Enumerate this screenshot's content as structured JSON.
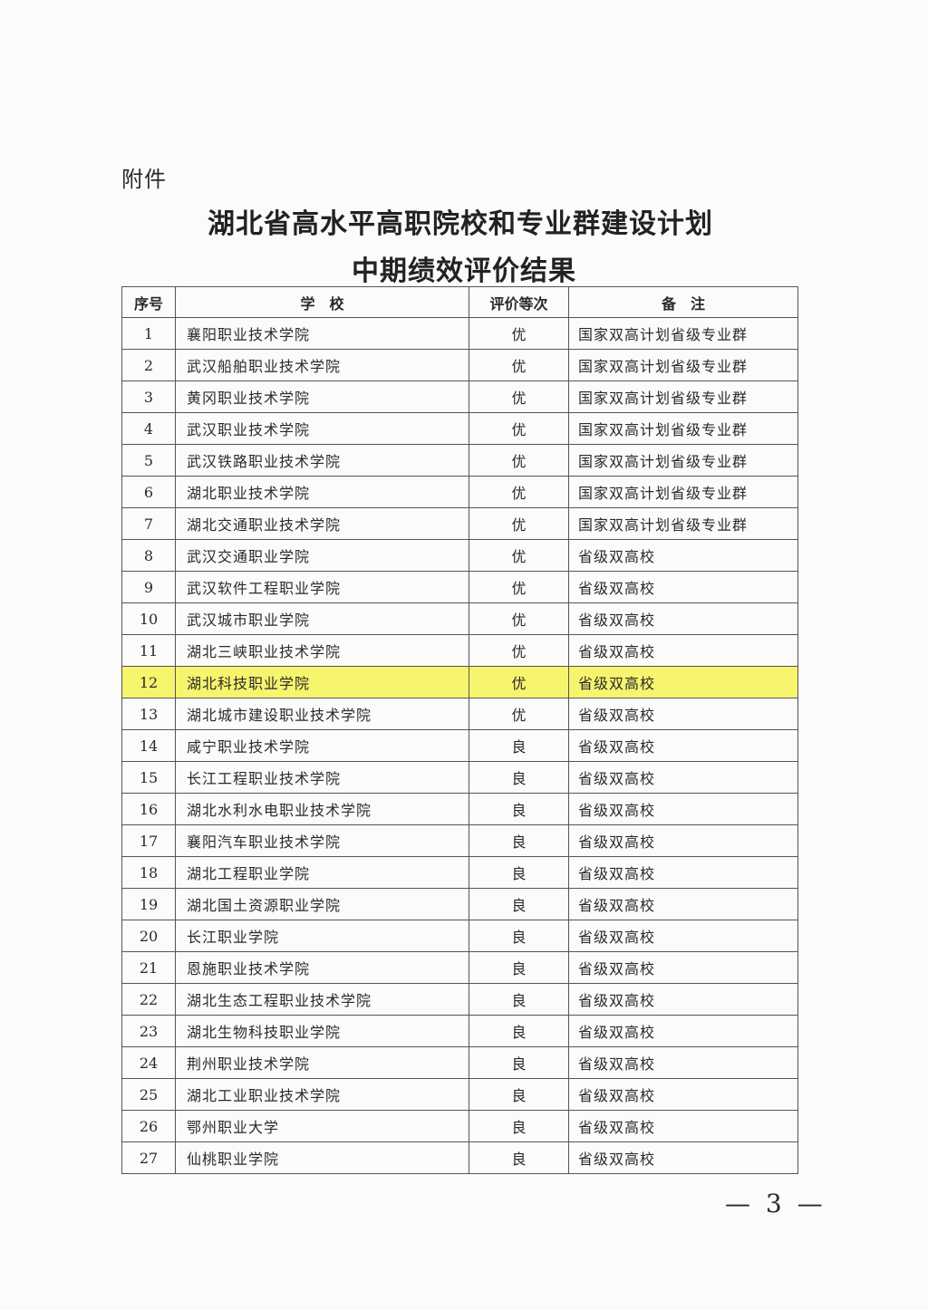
{
  "attachment_label": "附件",
  "title_line1": "湖北省高水平高职院校和专业群建设计划",
  "title_line2": "中期绩效评价结果",
  "table": {
    "headers": [
      "序号",
      "学　校",
      "评价等次",
      "备　注"
    ],
    "highlight_color": "#f7f46e",
    "rows": [
      {
        "no": "1",
        "school": "襄阳职业技术学院",
        "grade": "优",
        "note": "国家双高计划省级专业群"
      },
      {
        "no": "2",
        "school": "武汉船舶职业技术学院",
        "grade": "优",
        "note": "国家双高计划省级专业群"
      },
      {
        "no": "3",
        "school": "黄冈职业技术学院",
        "grade": "优",
        "note": "国家双高计划省级专业群"
      },
      {
        "no": "4",
        "school": "武汉职业技术学院",
        "grade": "优",
        "note": "国家双高计划省级专业群"
      },
      {
        "no": "5",
        "school": "武汉铁路职业技术学院",
        "grade": "优",
        "note": "国家双高计划省级专业群"
      },
      {
        "no": "6",
        "school": "湖北职业技术学院",
        "grade": "优",
        "note": "国家双高计划省级专业群"
      },
      {
        "no": "7",
        "school": "湖北交通职业技术学院",
        "grade": "优",
        "note": "国家双高计划省级专业群"
      },
      {
        "no": "8",
        "school": "武汉交通职业学院",
        "grade": "优",
        "note": "省级双高校"
      },
      {
        "no": "9",
        "school": "武汉软件工程职业学院",
        "grade": "优",
        "note": "省级双高校"
      },
      {
        "no": "10",
        "school": "武汉城市职业学院",
        "grade": "优",
        "note": "省级双高校"
      },
      {
        "no": "11",
        "school": "湖北三峡职业技术学院",
        "grade": "优",
        "note": "省级双高校"
      },
      {
        "no": "12",
        "school": "湖北科技职业学院",
        "grade": "优",
        "note": "省级双高校",
        "highlighted": true
      },
      {
        "no": "13",
        "school": "湖北城市建设职业技术学院",
        "grade": "优",
        "note": "省级双高校"
      },
      {
        "no": "14",
        "school": "咸宁职业技术学院",
        "grade": "良",
        "note": "省级双高校"
      },
      {
        "no": "15",
        "school": "长江工程职业技术学院",
        "grade": "良",
        "note": "省级双高校"
      },
      {
        "no": "16",
        "school": "湖北水利水电职业技术学院",
        "grade": "良",
        "note": "省级双高校"
      },
      {
        "no": "17",
        "school": "襄阳汽车职业技术学院",
        "grade": "良",
        "note": "省级双高校"
      },
      {
        "no": "18",
        "school": "湖北工程职业学院",
        "grade": "良",
        "note": "省级双高校"
      },
      {
        "no": "19",
        "school": "湖北国土资源职业学院",
        "grade": "良",
        "note": "省级双高校"
      },
      {
        "no": "20",
        "school": "长江职业学院",
        "grade": "良",
        "note": "省级双高校"
      },
      {
        "no": "21",
        "school": "恩施职业技术学院",
        "grade": "良",
        "note": "省级双高校"
      },
      {
        "no": "22",
        "school": "湖北生态工程职业技术学院",
        "grade": "良",
        "note": "省级双高校"
      },
      {
        "no": "23",
        "school": "湖北生物科技职业学院",
        "grade": "良",
        "note": "省级双高校"
      },
      {
        "no": "24",
        "school": "荆州职业技术学院",
        "grade": "良",
        "note": "省级双高校"
      },
      {
        "no": "25",
        "school": "湖北工业职业技术学院",
        "grade": "良",
        "note": "省级双高校"
      },
      {
        "no": "26",
        "school": "鄂州职业大学",
        "grade": "良",
        "note": "省级双高校"
      },
      {
        "no": "27",
        "school": "仙桃职业学院",
        "grade": "良",
        "note": "省级双高校"
      }
    ]
  },
  "page_number": "— 3 —"
}
